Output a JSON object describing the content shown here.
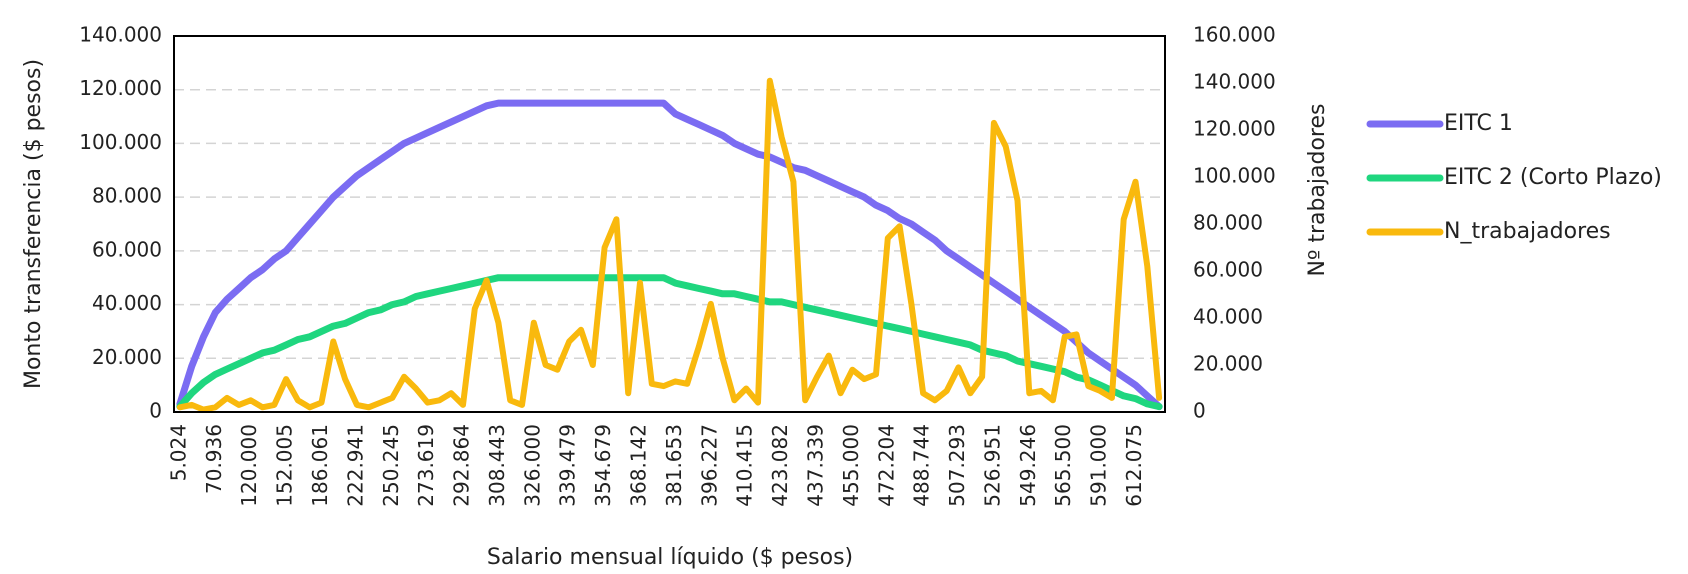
{
  "chart_data": {
    "type": "line",
    "x_label": "Salario mensual líquido ($ pesos)",
    "y_label": "Monto transferencia ($ pesos)",
    "y2_label": "Nº trabajadores",
    "categories": [
      "5.024",
      null,
      null,
      "70.936",
      null,
      null,
      "120.000",
      null,
      null,
      "152.005",
      null,
      null,
      "186.061",
      null,
      null,
      "222.941",
      null,
      null,
      "250.245",
      null,
      null,
      "273.619",
      null,
      null,
      "292.864",
      null,
      null,
      "308.443",
      null,
      null,
      "326.000",
      null,
      null,
      "339.479",
      null,
      null,
      "354.679",
      null,
      null,
      "368.142",
      null,
      null,
      "381.653",
      null,
      null,
      "396.227",
      null,
      null,
      "410.415",
      null,
      null,
      "423.082",
      null,
      null,
      "437.339",
      null,
      null,
      "455.000",
      null,
      null,
      "472.204",
      null,
      null,
      "488.744",
      null,
      null,
      "507.293",
      null,
      null,
      "526.951",
      null,
      null,
      "549.246",
      null,
      null,
      "565.500",
      null,
      null,
      "591.000",
      null,
      null,
      "612.075",
      null,
      null
    ],
    "series": [
      {
        "name": "EITC 1",
        "color": "#7b6cf2",
        "axis": "y",
        "values": [
          3000,
          17000,
          28000,
          37000,
          42000,
          46000,
          50000,
          53000,
          57000,
          60000,
          65000,
          70000,
          75000,
          80000,
          84000,
          88000,
          91000,
          94000,
          97000,
          100000,
          102000,
          104000,
          106000,
          108000,
          110000,
          112000,
          114000,
          115000,
          115000,
          115000,
          115000,
          115000,
          115000,
          115000,
          115000,
          115000,
          115000,
          115000,
          115000,
          115000,
          115000,
          115000,
          111000,
          109000,
          107000,
          105000,
          103000,
          100000,
          98000,
          96000,
          95000,
          93000,
          91000,
          90000,
          88000,
          86000,
          84000,
          82000,
          80000,
          77000,
          75000,
          72000,
          70000,
          67000,
          64000,
          60000,
          57000,
          54000,
          51000,
          48000,
          45000,
          42000,
          39000,
          36000,
          33000,
          30000,
          26000,
          22000,
          19000,
          16000,
          13000,
          10000,
          6000,
          2000
        ]
      },
      {
        "name": "EITC 2 (Corto Plazo)",
        "color": "#1fd67f",
        "axis": "y",
        "values": [
          2000,
          7000,
          11000,
          14000,
          16000,
          18000,
          20000,
          22000,
          23000,
          25000,
          27000,
          28000,
          30000,
          32000,
          33000,
          35000,
          37000,
          38000,
          40000,
          41000,
          43000,
          44000,
          45000,
          46000,
          47000,
          48000,
          49000,
          50000,
          50000,
          50000,
          50000,
          50000,
          50000,
          50000,
          50000,
          50000,
          50000,
          50000,
          50000,
          50000,
          50000,
          50000,
          48000,
          47000,
          46000,
          45000,
          44000,
          44000,
          43000,
          42000,
          41000,
          41000,
          40000,
          39000,
          38000,
          37000,
          36000,
          35000,
          34000,
          33000,
          32000,
          31000,
          30000,
          29000,
          28000,
          27000,
          26000,
          25000,
          23000,
          22000,
          21000,
          19000,
          18000,
          17000,
          16000,
          15000,
          13000,
          12000,
          10000,
          8000,
          6000,
          5000,
          3000,
          2000
        ]
      },
      {
        "name": "N_trabajadores",
        "color": "#f9b90d",
        "axis": "y2",
        "values": [
          2000,
          3000,
          1000,
          2000,
          6000,
          3000,
          5000,
          2000,
          3000,
          14000,
          5000,
          2000,
          4000,
          30000,
          14000,
          3000,
          2000,
          4000,
          6000,
          15000,
          10000,
          4000,
          5000,
          8000,
          3000,
          44000,
          56000,
          38000,
          5000,
          3000,
          38000,
          20000,
          18000,
          30000,
          35000,
          20000,
          70000,
          82000,
          8000,
          55000,
          12000,
          11000,
          13000,
          12000,
          28000,
          46000,
          23000,
          5000,
          10000,
          4000,
          141000,
          117000,
          98000,
          5000,
          15000,
          24000,
          8000,
          18000,
          14000,
          16000,
          74000,
          79000,
          46000,
          8000,
          5000,
          9000,
          19000,
          8000,
          15000,
          123000,
          113000,
          90000,
          8000,
          9000,
          5000,
          32000,
          33000,
          11000,
          9000,
          6000,
          82000,
          98000,
          62000,
          6000
        ]
      }
    ],
    "ylim": [
      0,
      140000
    ],
    "yticks": [
      0,
      {
        "value": 20000,
        "label": "20.000"
      },
      {
        "value": 40000,
        "label": "40.000"
      },
      {
        "value": 60000,
        "label": "60.000"
      },
      {
        "value": 80000,
        "label": "80.000"
      },
      {
        "value": 100000,
        "label": "100.000"
      },
      {
        "value": 120000,
        "label": "120.000"
      },
      {
        "value": 140000,
        "label": "140.000"
      }
    ],
    "y2lim": [
      0,
      160000
    ],
    "y2ticks": [
      0,
      {
        "value": 20000,
        "label": "20.000"
      },
      {
        "value": 40000,
        "label": "40.000"
      },
      {
        "value": 60000,
        "label": "60.000"
      },
      {
        "value": 80000,
        "label": "80.000"
      },
      {
        "value": 100000,
        "label": "100.000"
      },
      {
        "value": 120000,
        "label": "120.000"
      },
      {
        "value": 140000,
        "label": "140.000"
      },
      {
        "value": 160000,
        "label": "160.000"
      }
    ],
    "grid": true,
    "legend": "right"
  }
}
